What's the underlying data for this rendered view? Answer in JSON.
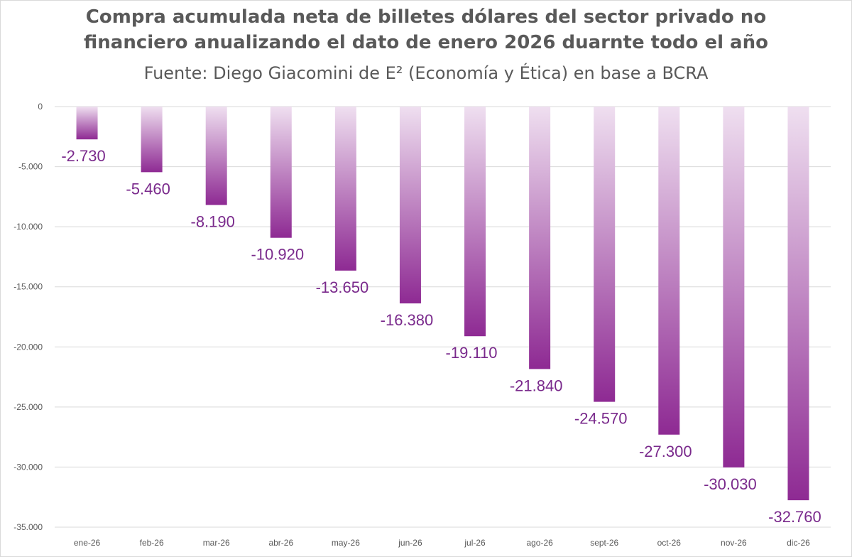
{
  "chart_data": {
    "type": "bar",
    "title": "Compra acumulada neta de billetes dólares del sector privado no financiero anualizando el dato de enero 2026 duarnte todo el año",
    "title_lines": [
      "Compra acumulada neta de billetes dólares del sector privado no",
      "financiero anualizando el dato de enero 2026 duarnte todo el año"
    ],
    "subtitle": "Fuente: Diego Giacomini de E² (Economía y Ética) en base a BCRA",
    "xlabel": "",
    "ylabel": "",
    "ylim": [
      -35000,
      0
    ],
    "yticks": [
      0,
      -5000,
      -10000,
      -15000,
      -20000,
      -25000,
      -30000,
      -35000
    ],
    "ytick_labels": [
      "0",
      "-5.000",
      "-10.000",
      "-15.000",
      "-20.000",
      "-25.000",
      "-30.000",
      "-35.000"
    ],
    "grid": true,
    "legend": "none",
    "categories": [
      "ene-26",
      "feb-26",
      "mar-26",
      "abr-26",
      "may-26",
      "jun-26",
      "jul-26",
      "ago-26",
      "sept-26",
      "oct-26",
      "nov-26",
      "dic-26"
    ],
    "values": [
      -2730,
      -5460,
      -8190,
      -10920,
      -13650,
      -16380,
      -19110,
      -21840,
      -24570,
      -27300,
      -30030,
      -32760
    ],
    "data_labels": [
      "-2.730",
      "-5.460",
      "-8.190",
      "-10.920",
      "-13.650",
      "-16.380",
      "-19.110",
      "-21.840",
      "-24.570",
      "-27.300",
      "-30.030",
      "-32.760"
    ],
    "colors": {
      "bar_top": "#efdff0",
      "bar_bottom": "#8e2a93",
      "data_label": "#7a2a8c",
      "axis_text": "#595959",
      "grid": "#d9d9d9",
      "title": "#595959"
    }
  }
}
